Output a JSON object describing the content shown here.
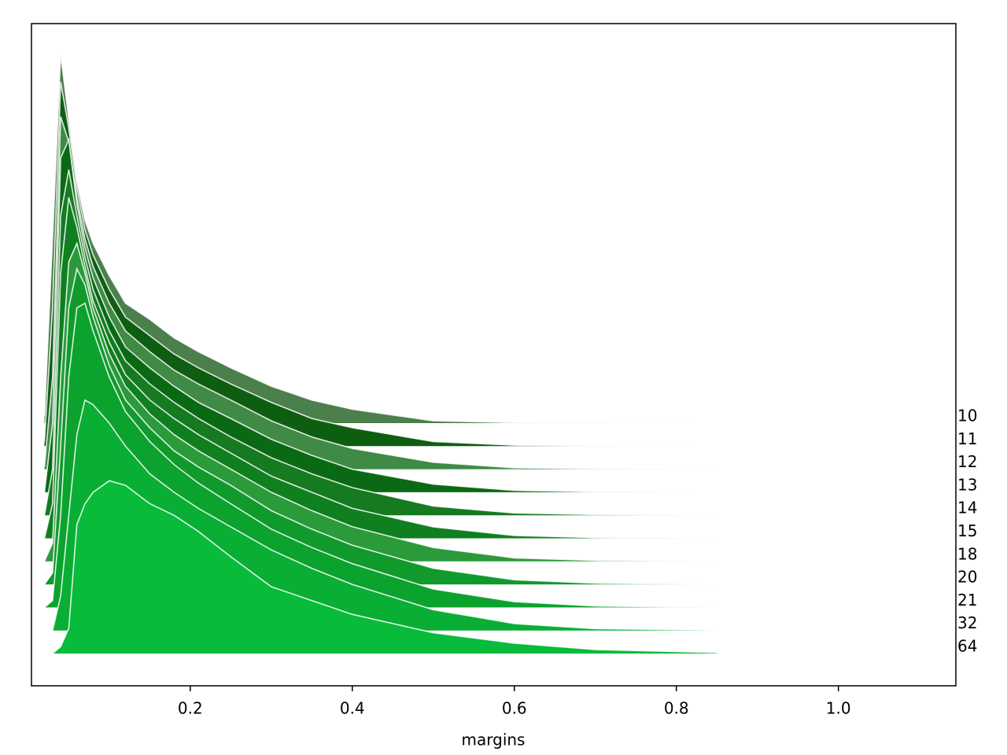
{
  "chart_data": {
    "type": "ridgeline",
    "x_label": "margins",
    "xlim": [
      0.004,
      1.145
    ],
    "xticks": [
      0.2,
      0.4,
      0.6,
      0.8,
      {
        "value": 1,
        "label": "1.0"
      }
    ],
    "x": [
      0.02,
      0.03,
      0.04,
      0.05,
      0.06,
      0.07,
      0.08,
      0.1,
      0.12,
      0.15,
      0.18,
      0.21,
      0.25,
      0.3,
      0.35,
      0.4,
      0.5,
      0.6,
      0.7,
      0.85
    ],
    "series": [
      {
        "name": "10",
        "color": "#4b7f4b",
        "values": [
          0.3,
          8,
          16,
          13.2,
          10.5,
          8.8,
          7.8,
          6.4,
          5.2,
          4.5,
          3.7,
          3.1,
          2.4,
          1.6,
          1.0,
          0.6,
          0.1,
          0.02,
          0.01,
          0
        ]
      },
      {
        "name": "11",
        "color": "#0e5e12",
        "values": [
          0.2,
          6,
          15.8,
          13.8,
          11.2,
          9.4,
          8.3,
          6.8,
          5.6,
          4.8,
          4.0,
          3.4,
          2.7,
          1.9,
          1.2,
          0.8,
          0.2,
          0.04,
          0.01,
          0
        ]
      },
      {
        "name": "12",
        "color": "#3f8a45",
        "values": [
          0.1,
          4,
          15.3,
          14.2,
          11.8,
          10,
          8.8,
          7.2,
          6.0,
          5.1,
          4.3,
          3.7,
          3.0,
          2.1,
          1.4,
          0.9,
          0.3,
          0.06,
          0.02,
          0
        ]
      },
      {
        "name": "13",
        "color": "#0a6a14",
        "values": [
          0,
          3,
          14.5,
          15.3,
          12.5,
          10.6,
          9.3,
          7.6,
          6.3,
          5.4,
          4.6,
          3.9,
          3.2,
          2.3,
          1.6,
          1.0,
          0.35,
          0.08,
          0.02,
          0
        ]
      },
      {
        "name": "14",
        "color": "#167a20",
        "values": [
          0,
          2,
          13,
          15,
          13,
          11.2,
          9.8,
          8.0,
          6.7,
          5.7,
          4.9,
          4.2,
          3.4,
          2.5,
          1.8,
          1.2,
          0.4,
          0.1,
          0.03,
          0
        ]
      },
      {
        "name": "15",
        "color": "#0f7f1f",
        "values": [
          0,
          1.5,
          11.5,
          14.8,
          13.5,
          11.8,
          10.3,
          8.5,
          7.1,
          6.0,
          5.2,
          4.5,
          3.7,
          2.7,
          2.0,
          1.3,
          0.5,
          0.12,
          0.03,
          0
        ]
      },
      {
        "name": "18",
        "color": "#2a9a3a",
        "values": [
          0,
          0.8,
          8,
          13,
          13.8,
          12.5,
          11,
          9.0,
          7.6,
          6.4,
          5.5,
          4.8,
          4.0,
          3.0,
          2.2,
          1.5,
          0.6,
          0.15,
          0.04,
          0
        ]
      },
      {
        "name": "20",
        "color": "#109a2c",
        "values": [
          0,
          0.5,
          6,
          12,
          13.7,
          13,
          11.6,
          9.5,
          8.0,
          6.8,
          5.8,
          5.1,
          4.3,
          3.2,
          2.4,
          1.7,
          0.7,
          0.2,
          0.05,
          0
        ]
      },
      {
        "name": "21",
        "color": "#0ca22e",
        "values": [
          0,
          0.3,
          4,
          10,
          13,
          13.2,
          12,
          10,
          8.5,
          7.2,
          6.2,
          5.4,
          4.5,
          3.4,
          2.6,
          1.9,
          0.8,
          0.25,
          0.06,
          0
        ]
      },
      {
        "name": "32",
        "color": "#09ae34",
        "values": [
          0,
          0,
          1.5,
          5,
          8.5,
          10,
          9.8,
          9.0,
          8.0,
          6.8,
          6.0,
          5.3,
          4.5,
          3.5,
          2.7,
          2.0,
          0.9,
          0.3,
          0.08,
          0.01
        ]
      },
      {
        "name": "64",
        "color": "#08bb3a",
        "values": [
          0,
          0,
          0.3,
          1.1,
          5.6,
          6.5,
          7.0,
          7.5,
          7.3,
          6.5,
          6.0,
          5.3,
          4.2,
          2.9,
          2.3,
          1.7,
          0.9,
          0.45,
          0.17,
          0.04
        ]
      }
    ]
  }
}
